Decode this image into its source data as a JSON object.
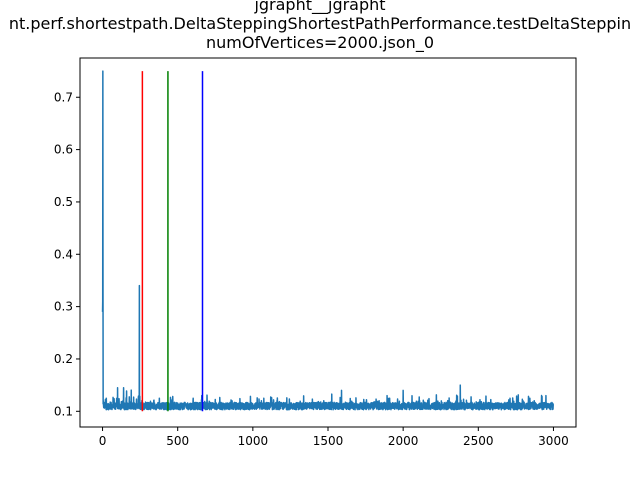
{
  "chart_data": {
    "type": "line",
    "title_lines": [
      "jgrapht__jgrapht",
      "nt.perf.shortestpath.DeltaSteppingShortestPathPerformance.testDeltaSteppin",
      "numOfVertices=2000.json_0"
    ],
    "xlabel": "",
    "ylabel": "",
    "xlim": [
      -150,
      3150
    ],
    "ylim": [
      0.07,
      0.775
    ],
    "x_ticks": [
      0,
      500,
      1000,
      1500,
      2000,
      2500,
      3000
    ],
    "x_tick_labels": [
      "0",
      "500",
      "1000",
      "1500",
      "2000",
      "2500",
      "3000"
    ],
    "y_ticks": [
      0.1,
      0.2,
      0.3,
      0.4,
      0.5,
      0.6,
      0.7
    ],
    "y_tick_labels": [
      "0.1",
      "0.2",
      "0.3",
      "0.4",
      "0.5",
      "0.6",
      "0.7"
    ],
    "grid": false,
    "legend": "none",
    "series": [
      {
        "color": "#1f77b4",
        "n_points": 3000,
        "baseline": 0.11,
        "features": [
          {
            "x": 0,
            "y": 0.29
          },
          {
            "x": 1,
            "y": 0.31
          },
          {
            "x": 2,
            "y": 0.75
          },
          {
            "x": 3,
            "y": 0.35
          },
          {
            "x": 5,
            "y": 0.12
          },
          {
            "x": 25,
            "y": 0.125
          },
          {
            "x": 100,
            "y": 0.145
          },
          {
            "x": 140,
            "y": 0.145
          },
          {
            "x": 245,
            "y": 0.34
          },
          {
            "x": 660,
            "y": 0.13
          },
          {
            "x": 1590,
            "y": 0.14
          },
          {
            "x": 2000,
            "y": 0.14
          },
          {
            "x": 2380,
            "y": 0.15
          },
          {
            "x": 2950,
            "y": 0.13
          }
        ]
      }
    ],
    "vlines": [
      {
        "x": 265,
        "ymin": 0.1,
        "ymax": 0.75,
        "color": "#ff0000"
      },
      {
        "x": 435,
        "ymin": 0.1,
        "ymax": 0.75,
        "color": "#008000"
      },
      {
        "x": 665,
        "ymin": 0.1,
        "ymax": 0.75,
        "color": "#0000ff"
      }
    ]
  }
}
